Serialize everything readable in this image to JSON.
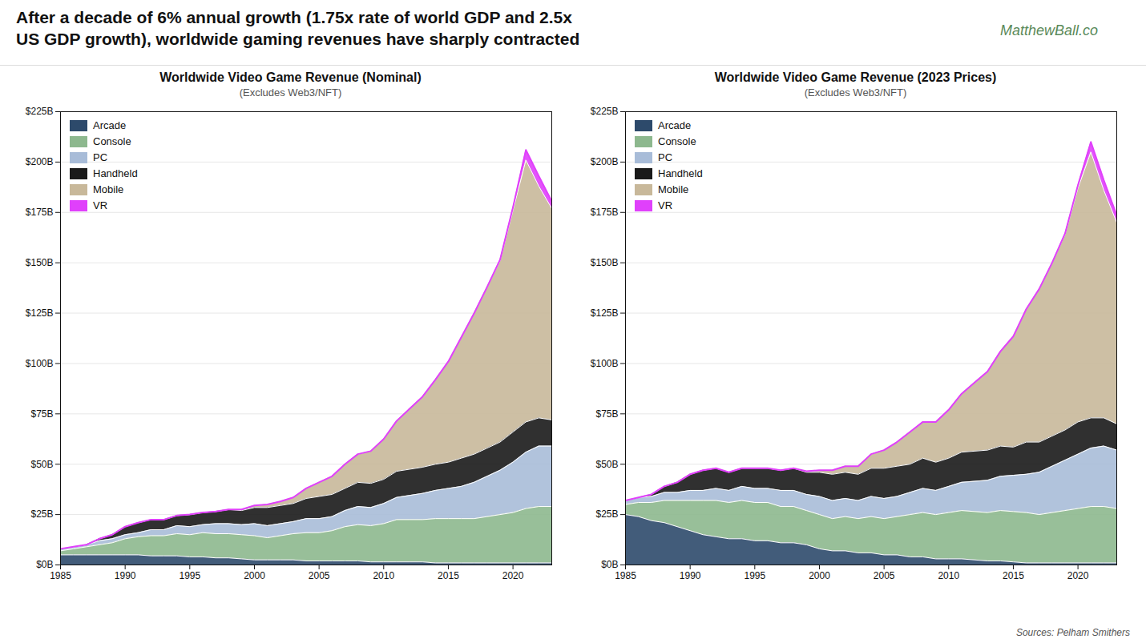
{
  "title": "After a decade of 6% annual growth (1.75x rate of world GDP and 2.5x\nUS GDP growth), worldwide gaming revenues have sharply contracted",
  "annotations": [
    "MatthewBall.co",
    "Sources: Pelham Smithers"
  ],
  "chart_data": [
    {
      "type": "area",
      "stacked": true,
      "title": "Worldwide Video Game Revenue (Nominal)",
      "subtitle": "(Excludes Web3/NFT)",
      "x": [
        1985,
        1986,
        1987,
        1988,
        1989,
        1990,
        1991,
        1992,
        1993,
        1994,
        1995,
        1996,
        1997,
        1998,
        1999,
        2000,
        2001,
        2002,
        2003,
        2004,
        2005,
        2006,
        2007,
        2008,
        2009,
        2010,
        2011,
        2012,
        2013,
        2014,
        2015,
        2016,
        2017,
        2018,
        2019,
        2020,
        2021,
        2022,
        2023
      ],
      "series": [
        {
          "name": "Arcade",
          "color": "#2d4a6b",
          "values": [
            5.0,
            5.0,
            5.0,
            5.0,
            5.0,
            5.0,
            5.0,
            4.5,
            4.5,
            4.5,
            4.0,
            4.0,
            3.5,
            3.5,
            3.0,
            2.5,
            2.5,
            2.5,
            2.5,
            2.0,
            2.0,
            2.0,
            2.0,
            2.0,
            1.5,
            1.5,
            1.5,
            1.5,
            1.5,
            1.0,
            1.0,
            1.0,
            1.0,
            1.0,
            1.0,
            1.0,
            1.0,
            1.0,
            1.0
          ]
        },
        {
          "name": "Console",
          "color": "#8db88e",
          "values": [
            2.0,
            3.0,
            4.0,
            5.0,
            6.0,
            8.0,
            9.0,
            10.0,
            10.0,
            11.0,
            11.0,
            12.0,
            12.0,
            12.0,
            12.0,
            12.0,
            11.0,
            12.0,
            13.0,
            14.0,
            14.0,
            15.0,
            17.0,
            18.0,
            18.0,
            19.0,
            21.0,
            21.0,
            21.0,
            22.0,
            22.0,
            22.0,
            22.0,
            23.0,
            24.0,
            25.0,
            27.0,
            28.0,
            28.0
          ]
        },
        {
          "name": "PC",
          "color": "#a8bcd8",
          "values": [
            1.0,
            1.0,
            1.0,
            2.0,
            2.0,
            2.0,
            2.0,
            3.0,
            3.0,
            4.0,
            4.0,
            4.0,
            5.0,
            5.0,
            5.0,
            6.0,
            6.0,
            6.0,
            6.0,
            7.0,
            7.0,
            7.0,
            8.0,
            9.0,
            9.0,
            10.0,
            11.0,
            12.0,
            13.0,
            14.0,
            15.0,
            16.0,
            18.0,
            20.0,
            22.0,
            25.0,
            28.0,
            30.0,
            30.0
          ]
        },
        {
          "name": "Handheld",
          "color": "#1a1a1a",
          "values": [
            0.0,
            0.0,
            0.0,
            1.0,
            2.0,
            4.0,
            5.0,
            5.0,
            5.0,
            5.0,
            6.0,
            6.0,
            6.0,
            7.0,
            7.0,
            8.0,
            9.0,
            9.0,
            9.0,
            10.0,
            11.0,
            11.0,
            11.0,
            12.0,
            12.0,
            12.0,
            13.0,
            13.0,
            13.0,
            13.0,
            13.0,
            14.0,
            14.0,
            14.0,
            14.0,
            15.0,
            15.0,
            14.0,
            13.0
          ]
        },
        {
          "name": "Mobile",
          "color": "#c8b89a",
          "values": [
            0.0,
            0.0,
            0.0,
            0.0,
            0.0,
            0.0,
            0.0,
            0.0,
            0.0,
            0.0,
            0.0,
            0.0,
            0.0,
            0.0,
            0.5,
            1.0,
            1.5,
            2.0,
            3.0,
            5.0,
            7.0,
            9.0,
            12.0,
            14.0,
            16.0,
            20.0,
            25.0,
            30.0,
            35.0,
            42.0,
            50.0,
            60.0,
            70.0,
            80.0,
            90.0,
            110.0,
            130.0,
            115.0,
            105.0
          ]
        },
        {
          "name": "VR",
          "color": "#e040fb",
          "values": [
            0.0,
            0.0,
            0.0,
            0.0,
            0.0,
            0.0,
            0.0,
            0.0,
            0.0,
            0.0,
            0.0,
            0.0,
            0.0,
            0.0,
            0.0,
            0.0,
            0.0,
            0.0,
            0.0,
            0.0,
            0.0,
            0.0,
            0.0,
            0.0,
            0.0,
            0.0,
            0.0,
            0.0,
            0.0,
            0.0,
            0.0,
            0.0,
            0.0,
            0.0,
            0.5,
            1.5,
            5.0,
            5.0,
            3.5
          ]
        }
      ],
      "xlim": [
        1985,
        2023
      ],
      "xticks": [
        1985,
        1990,
        1995,
        2000,
        2005,
        2010,
        2015,
        2020
      ],
      "ylim": [
        0,
        225
      ],
      "yticks": [
        {
          "value": 0,
          "label": "$0B"
        },
        {
          "value": 25,
          "label": "$25B"
        },
        {
          "value": 50,
          "label": "$50B"
        },
        {
          "value": 75,
          "label": "$75B"
        },
        {
          "value": 100,
          "label": "$100B"
        },
        {
          "value": 125,
          "label": "$125B"
        },
        {
          "value": 150,
          "label": "$150B"
        },
        {
          "value": 175,
          "label": "$175B"
        },
        {
          "value": 200,
          "label": "$200B"
        },
        {
          "value": 225,
          "label": "$225B"
        }
      ],
      "grid": true,
      "legend": "upper left"
    },
    {
      "type": "area",
      "stacked": true,
      "title": "Worldwide Video Game Revenue (2023 Prices)",
      "subtitle": "(Excludes Web3/NFT)",
      "x": [
        1985,
        1986,
        1987,
        1988,
        1989,
        1990,
        1991,
        1992,
        1993,
        1994,
        1995,
        1996,
        1997,
        1998,
        1999,
        2000,
        2001,
        2002,
        2003,
        2004,
        2005,
        2006,
        2007,
        2008,
        2009,
        2010,
        2011,
        2012,
        2013,
        2014,
        2015,
        2016,
        2017,
        2018,
        2019,
        2020,
        2021,
        2022,
        2023
      ],
      "series": [
        {
          "name": "Arcade",
          "color": "#2d4a6b",
          "values": [
            25.0,
            24.0,
            22.0,
            21.0,
            19.0,
            17.0,
            15.0,
            14.0,
            13.0,
            13.0,
            12.0,
            12.0,
            11.0,
            11.0,
            10.0,
            8.0,
            7.0,
            7.0,
            6.0,
            6.0,
            5.0,
            5.0,
            4.0,
            4.0,
            3.0,
            3.0,
            3.0,
            2.5,
            2.0,
            2.0,
            1.5,
            1.0,
            1.0,
            1.0,
            1.0,
            1.0,
            1.0,
            1.0,
            1.0
          ]
        },
        {
          "name": "Console",
          "color": "#8db88e",
          "values": [
            5.0,
            7.0,
            9.0,
            11.0,
            13.0,
            15.0,
            17.0,
            18.0,
            18.0,
            19.0,
            19.0,
            19.0,
            18.0,
            18.0,
            17.0,
            17.0,
            16.0,
            17.0,
            17.0,
            18.0,
            18.0,
            19.0,
            21.0,
            22.0,
            22.0,
            23.0,
            24.0,
            24.0,
            24.0,
            25.0,
            25.0,
            25.0,
            24.0,
            25.0,
            26.0,
            27.0,
            28.0,
            28.0,
            27.0
          ]
        },
        {
          "name": "PC",
          "color": "#a8bcd8",
          "values": [
            2.0,
            2.5,
            3.0,
            4.0,
            4.0,
            5.0,
            5.0,
            6.0,
            6.0,
            7.0,
            7.0,
            7.0,
            8.0,
            8.0,
            8.0,
            9.0,
            9.0,
            9.0,
            9.0,
            10.0,
            10.0,
            10.0,
            11.0,
            12.0,
            12.0,
            13.0,
            14.0,
            15.0,
            16.0,
            17.0,
            18.0,
            19.0,
            21.0,
            23.0,
            25.0,
            27.0,
            29.0,
            30.0,
            29.0
          ]
        },
        {
          "name": "Handheld",
          "color": "#1a1a1a",
          "values": [
            0.0,
            0.0,
            1.0,
            3.0,
            5.0,
            8.0,
            10.0,
            10.0,
            9.0,
            9.0,
            10.0,
            10.0,
            10.0,
            11.0,
            11.0,
            12.0,
            13.0,
            13.0,
            13.0,
            14.0,
            15.0,
            15.0,
            14.0,
            15.0,
            14.0,
            14.0,
            15.0,
            15.0,
            15.0,
            15.0,
            14.0,
            16.0,
            15.0,
            15.0,
            15.0,
            16.0,
            15.0,
            14.0,
            13.0
          ]
        },
        {
          "name": "Mobile",
          "color": "#c8b89a",
          "values": [
            0.0,
            0.0,
            0.0,
            0.0,
            0.0,
            0.0,
            0.0,
            0.0,
            0.0,
            0.0,
            0.0,
            0.0,
            0.0,
            0.0,
            0.5,
            1.0,
            2.0,
            3.0,
            4.0,
            7.0,
            9.0,
            12.0,
            16.0,
            18.0,
            20.0,
            24.0,
            29.0,
            34.0,
            39.0,
            47.0,
            55.0,
            66.0,
            76.0,
            86.0,
            97.0,
            116.0,
            132.0,
            113.0,
            100.0
          ]
        },
        {
          "name": "VR",
          "color": "#e040fb",
          "values": [
            0.0,
            0.0,
            0.0,
            0.0,
            0.0,
            0.0,
            0.0,
            0.0,
            0.0,
            0.0,
            0.0,
            0.0,
            0.0,
            0.0,
            0.0,
            0.0,
            0.0,
            0.0,
            0.0,
            0.0,
            0.0,
            0.0,
            0.0,
            0.0,
            0.0,
            0.0,
            0.0,
            0.0,
            0.0,
            0.0,
            0.0,
            0.0,
            0.0,
            0.0,
            0.5,
            1.5,
            5.0,
            5.0,
            3.5
          ]
        }
      ],
      "xlim": [
        1985,
        2023
      ],
      "xticks": [
        1985,
        1990,
        1995,
        2000,
        2005,
        2010,
        2015,
        2020
      ],
      "ylim": [
        0,
        225
      ],
      "yticks": [
        {
          "value": 0,
          "label": "$0B"
        },
        {
          "value": 25,
          "label": "$25B"
        },
        {
          "value": 50,
          "label": "$50B"
        },
        {
          "value": 75,
          "label": "$75B"
        },
        {
          "value": 100,
          "label": "$100B"
        },
        {
          "value": 125,
          "label": "$125B"
        },
        {
          "value": 150,
          "label": "$150B"
        },
        {
          "value": 175,
          "label": "$175B"
        },
        {
          "value": 200,
          "label": "$200B"
        },
        {
          "value": 225,
          "label": "$225B"
        }
      ],
      "grid": true,
      "legend": "upper left"
    }
  ]
}
